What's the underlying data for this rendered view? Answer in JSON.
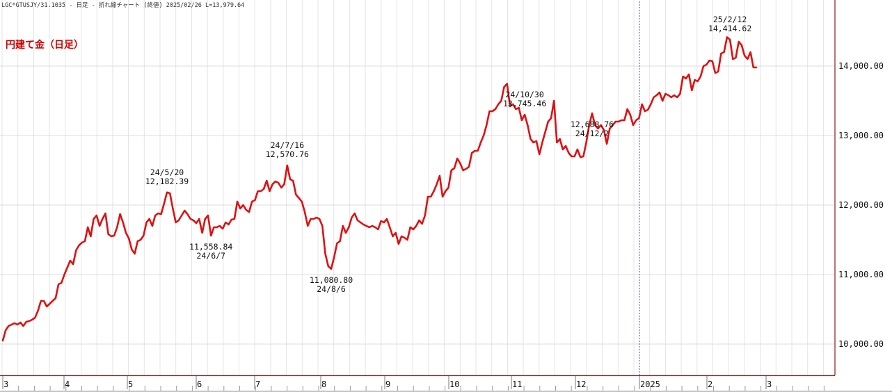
{
  "header_text": "LGC*GTUSJY/31.1035 - 日足 - 折れ線チャート (終値)  2025/02/26 L=13,979.64",
  "chart_data": {
    "type": "line",
    "title": "円建て金（日足）",
    "xlabel": "",
    "ylabel": "",
    "ylim": [
      9650,
      14900
    ],
    "y_ticks": [
      10000,
      11000,
      12000,
      13000,
      14000
    ],
    "y_tick_labels": [
      "10,000.00",
      "11,000.00",
      "12,000.00",
      "13,000.00",
      "14,000.00"
    ],
    "month_labels": [
      "3",
      "4",
      "5",
      "6",
      "7",
      "8",
      "9",
      "10",
      "11",
      "12",
      "2025",
      "2",
      "3"
    ],
    "year_divider_label": "2025",
    "grid": true,
    "line_color": "#e01010",
    "series": [
      {
        "values": [
          10050,
          10200,
          10260,
          10280,
          10300,
          10280,
          10310,
          10260,
          10320,
          10330,
          10350,
          10380,
          10480,
          10620,
          10620,
          10540,
          10580,
          10620,
          10660,
          10860,
          10880,
          11000,
          11100,
          11200,
          11150,
          11350,
          11420,
          11460,
          11480,
          11680,
          11550,
          11800,
          11850,
          11700,
          11800,
          11880,
          11580,
          11550,
          11560,
          11680,
          11870,
          11750,
          11600,
          11520,
          11360,
          11300,
          11480,
          11500,
          11560,
          11750,
          11800,
          11700,
          11850,
          11880,
          11870,
          12020,
          12182,
          12170,
          11950,
          11750,
          11780,
          11850,
          11920,
          11870,
          11800,
          11780,
          11740,
          11800,
          11600,
          11800,
          11850,
          11559,
          11680,
          11680,
          11700,
          11660,
          11750,
          11720,
          11790,
          11800,
          12050,
          11950,
          12000,
          11930,
          11900,
          12050,
          12070,
          12200,
          12200,
          12230,
          12350,
          12200,
          12300,
          12340,
          12320,
          12250,
          12300,
          12571,
          12370,
          12350,
          12150,
          12100,
          12050,
          11900,
          11700,
          11800,
          11800,
          11820,
          11800,
          11700,
          11300,
          11120,
          11081,
          11250,
          11450,
          11480,
          11700,
          11600,
          11680,
          11820,
          11880,
          11780,
          11750,
          11720,
          11700,
          11680,
          11700,
          11680,
          11650,
          11770,
          11750,
          11800,
          11680,
          11550,
          11600,
          11440,
          11550,
          11530,
          11500,
          11680,
          11650,
          11700,
          11780,
          11730,
          11850,
          12120,
          12120,
          12200,
          12300,
          12420,
          12120,
          12200,
          12250,
          12500,
          12530,
          12670,
          12600,
          12500,
          12520,
          12550,
          12750,
          12780,
          12780,
          12900,
          13000,
          13150,
          13350,
          13350,
          13380,
          13450,
          13500,
          13700,
          13745,
          13420,
          13450,
          13380,
          13400,
          13220,
          13300,
          13150,
          12950,
          12900,
          12920,
          12730,
          12900,
          13050,
          13200,
          13250,
          13500,
          12900,
          12950,
          12800,
          12850,
          12750,
          12700,
          12700,
          12800,
          12689,
          12700,
          12900,
          13150,
          13320,
          13150,
          13100,
          13150,
          13080,
          12880,
          13100,
          13150,
          13200,
          13200,
          13220,
          13220,
          13380,
          13300,
          13150,
          13220,
          13250,
          13450,
          13350,
          13370,
          13450,
          13550,
          13580,
          13620,
          13500,
          13600,
          13580,
          13550,
          13580,
          13550,
          13600,
          13850,
          13820,
          13880,
          13650,
          13800,
          13780,
          13850,
          14000,
          14020,
          14080,
          14070,
          13900,
          13920,
          14180,
          14200,
          14415,
          14380,
          14100,
          14120,
          14350,
          14300,
          14150,
          14100,
          14200,
          13980,
          13980
        ]
      }
    ],
    "annotations": [
      {
        "index": 56,
        "lines": [
          "24/5/20",
          "12,182.39"
        ],
        "pos": "above"
      },
      {
        "index": 71,
        "lines": [
          "11,558.84",
          "24/6/7"
        ],
        "pos": "below"
      },
      {
        "index": 97,
        "lines": [
          "24/7/16",
          "12,570.76"
        ],
        "pos": "above"
      },
      {
        "index": 112,
        "lines": [
          "11,080.80",
          "24/8/6"
        ],
        "pos": "below"
      },
      {
        "index": 178,
        "lines": [
          "24/10/30",
          "13,745.46"
        ],
        "pos": "above"
      },
      {
        "index": 201,
        "lines": [
          "12,688.76",
          "24/12/2"
        ],
        "pos": "below"
      },
      {
        "index": 248,
        "lines": [
          "25/2/12",
          "14,414.62"
        ],
        "pos": "above"
      }
    ]
  }
}
